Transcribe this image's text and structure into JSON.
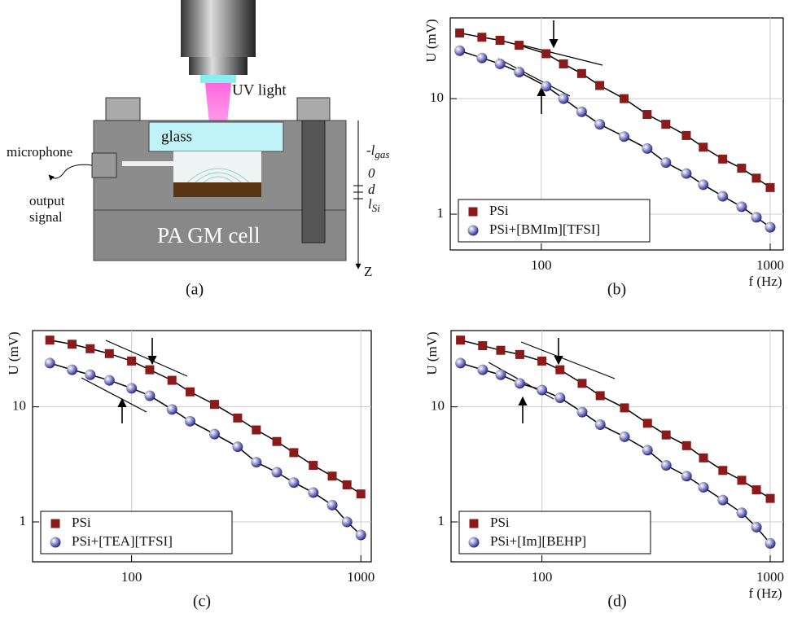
{
  "diagram": {
    "label": "(a)",
    "microphone": "microphone",
    "output_signal": [
      "output",
      "signal"
    ],
    "uv_light": "UV light",
    "glass": "glass",
    "cell": "PA GM cell",
    "z_axis": "Z",
    "depths": [
      {
        "text": "-l",
        "sub": "gas"
      },
      {
        "text": "0"
      },
      {
        "text": "d"
      },
      {
        "text": "l",
        "sub": "Si"
      }
    ]
  },
  "chart_data": [
    {
      "type": "scatter",
      "label": "(b)",
      "y_label": "U  (mV)",
      "x_label": "f (Hz)",
      "log_x": true,
      "log_y": true,
      "grid": true,
      "legend": "lower left",
      "xlim": [
        40,
        1140
      ],
      "ylim": [
        0.49,
        50
      ],
      "xticks": [
        100,
        1000
      ],
      "yticks": [
        1,
        10
      ],
      "x": [
        44,
        55,
        66,
        80,
        105,
        125,
        150,
        180,
        230,
        290,
        350,
        430,
        510,
        620,
        750,
        870,
        1000
      ],
      "series": [
        {
          "name": "PSi",
          "color": "#8b1a1a",
          "marker": "square",
          "values": [
            37,
            34,
            32,
            29,
            24.5,
            20,
            16.5,
            13,
            10,
            7.3,
            6.0,
            4.8,
            3.8,
            3.0,
            2.5,
            2.05,
            1.7
          ]
        },
        {
          "name": "PSi+[BMIm][TFSI]",
          "color": "#1c1c8a",
          "marker": "sphere",
          "values": [
            26,
            22.5,
            20,
            17,
            12.8,
            10,
            7.7,
            6.0,
            4.7,
            3.7,
            2.8,
            2.25,
            1.8,
            1.43,
            1.16,
            0.94,
            0.77
          ]
        }
      ]
    },
    {
      "type": "scatter",
      "label": "(c)",
      "y_label": "U  (mV)",
      "log_x": true,
      "log_y": true,
      "grid": true,
      "legend": "lower left",
      "xlim": [
        37,
        1110
      ],
      "ylim": [
        0.45,
        46
      ],
      "xticks": [
        100,
        1000
      ],
      "yticks": [
        1,
        10
      ],
      "x": [
        44,
        55,
        66,
        80,
        100,
        120,
        150,
        180,
        230,
        290,
        350,
        430,
        510,
        620,
        750,
        870,
        1000
      ],
      "series": [
        {
          "name": "PSi",
          "color": "#8b1a1a",
          "marker": "square",
          "values": [
            38,
            35,
            32,
            29,
            25,
            21,
            17,
            13.5,
            10.5,
            8.0,
            6.3,
            5.0,
            4.0,
            3.1,
            2.5,
            2.1,
            1.75
          ]
        },
        {
          "name": "PSi+[TEA][TFSI]",
          "color": "#1c1c8a",
          "marker": "sphere",
          "values": [
            24,
            21,
            19,
            17,
            14.5,
            12.5,
            9.5,
            7.5,
            5.8,
            4.5,
            3.3,
            2.7,
            2.2,
            1.8,
            1.4,
            1.0,
            0.77
          ]
        }
      ]
    },
    {
      "type": "scatter",
      "label": "(d)",
      "y_label": "U  (mV)",
      "x_label": "f (Hz)",
      "log_x": true,
      "log_y": true,
      "grid": true,
      "legend": "lower left",
      "xlim": [
        40,
        1140
      ],
      "ylim": [
        0.45,
        46
      ],
      "xticks": [
        100,
        1000
      ],
      "yticks": [
        1,
        10
      ],
      "x": [
        44,
        55,
        66,
        80,
        100,
        120,
        150,
        180,
        230,
        290,
        350,
        430,
        510,
        620,
        750,
        870,
        1000
      ],
      "series": [
        {
          "name": "PSi",
          "color": "#8b1a1a",
          "marker": "square",
          "values": [
            38,
            34,
            31,
            28.5,
            25,
            21,
            16,
            12.5,
            9.8,
            7.2,
            5.7,
            4.6,
            3.6,
            2.8,
            2.3,
            1.9,
            1.6
          ]
        },
        {
          "name": "PSi+[Im][BEHP]",
          "color": "#1c1c8a",
          "marker": "sphere",
          "values": [
            24,
            21,
            19,
            16,
            14,
            12,
            9,
            7,
            5.5,
            4.2,
            3.1,
            2.5,
            2.0,
            1.55,
            1.2,
            0.9,
            0.65
          ]
        }
      ]
    }
  ]
}
